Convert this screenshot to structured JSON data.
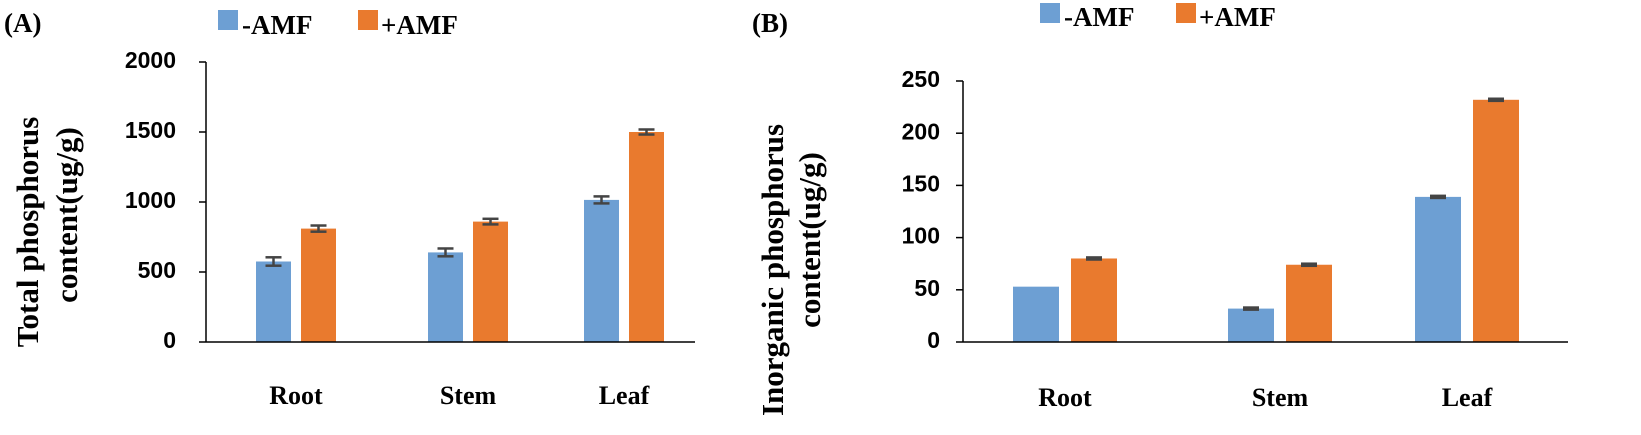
{
  "chart_data": [
    {
      "type": "bar",
      "panel_label": "(A)",
      "title": "",
      "xlabel": "",
      "ylabel_lines": [
        "Total phosphorus",
        "content(ug/g)"
      ],
      "categories": [
        "Root",
        "Stem",
        "Leaf"
      ],
      "series": [
        {
          "name": "-AMF",
          "values": [
            575,
            640,
            1015
          ],
          "errors": [
            30,
            28,
            25
          ]
        },
        {
          "name": "+AMF",
          "values": [
            810,
            860,
            1500
          ],
          "errors": [
            22,
            20,
            18
          ]
        }
      ],
      "ylim": [
        0,
        2000
      ],
      "yticks": [
        "0",
        "500",
        "1000",
        "1500",
        "2000"
      ],
      "legend_position": "top",
      "grid": false
    },
    {
      "type": "bar",
      "panel_label": "(B)",
      "title": "",
      "xlabel": "",
      "ylabel_lines": [
        "Inorganic phosphorus",
        "content(ug/g)"
      ],
      "categories": [
        "Root",
        "Stem",
        "Leaf"
      ],
      "series": [
        {
          "name": "-AMF",
          "values": [
            53,
            32,
            139
          ],
          "errors": [
            0,
            1,
            1
          ]
        },
        {
          "name": "+AMF",
          "values": [
            80,
            74,
            232
          ],
          "errors": [
            1,
            1,
            1
          ]
        }
      ],
      "ylim": [
        0,
        250
      ],
      "yticks": [
        "0",
        "50",
        "100",
        "150",
        "200",
        "250"
      ],
      "legend_position": "top",
      "grid": false
    }
  ],
  "colors": {
    "minus_amf": "#6d9fd3",
    "plus_amf": "#e97a2e",
    "axis": "#000000",
    "error": "#444444"
  }
}
